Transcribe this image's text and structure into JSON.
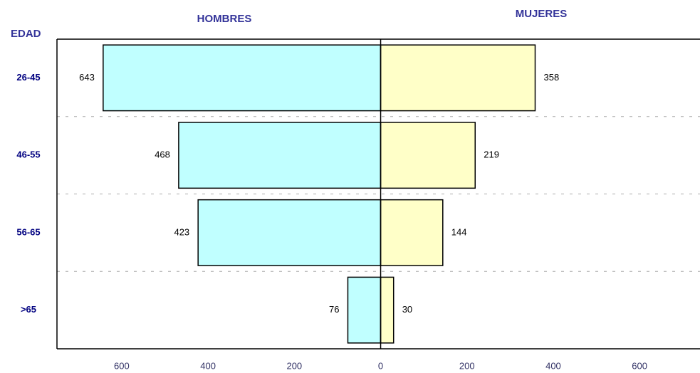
{
  "chart_data": {
    "type": "pyramid",
    "y_label": "EDAD",
    "categories": [
      "26-45",
      "46-55",
      "56-65",
      ">65"
    ],
    "series": [
      {
        "name": "HOMBRES",
        "color": "#c0ffff",
        "values": [
          643,
          468,
          423,
          76
        ]
      },
      {
        "name": "MUJERES",
        "color": "#ffffc8",
        "values": [
          358,
          219,
          144,
          30
        ]
      }
    ],
    "xlim": [
      -750,
      740
    ],
    "xticks": [
      {
        "value": -600,
        "label": "600"
      },
      {
        "value": -400,
        "label": "400"
      },
      {
        "value": -200,
        "label": "200"
      },
      0,
      200,
      400,
      600
    ]
  }
}
